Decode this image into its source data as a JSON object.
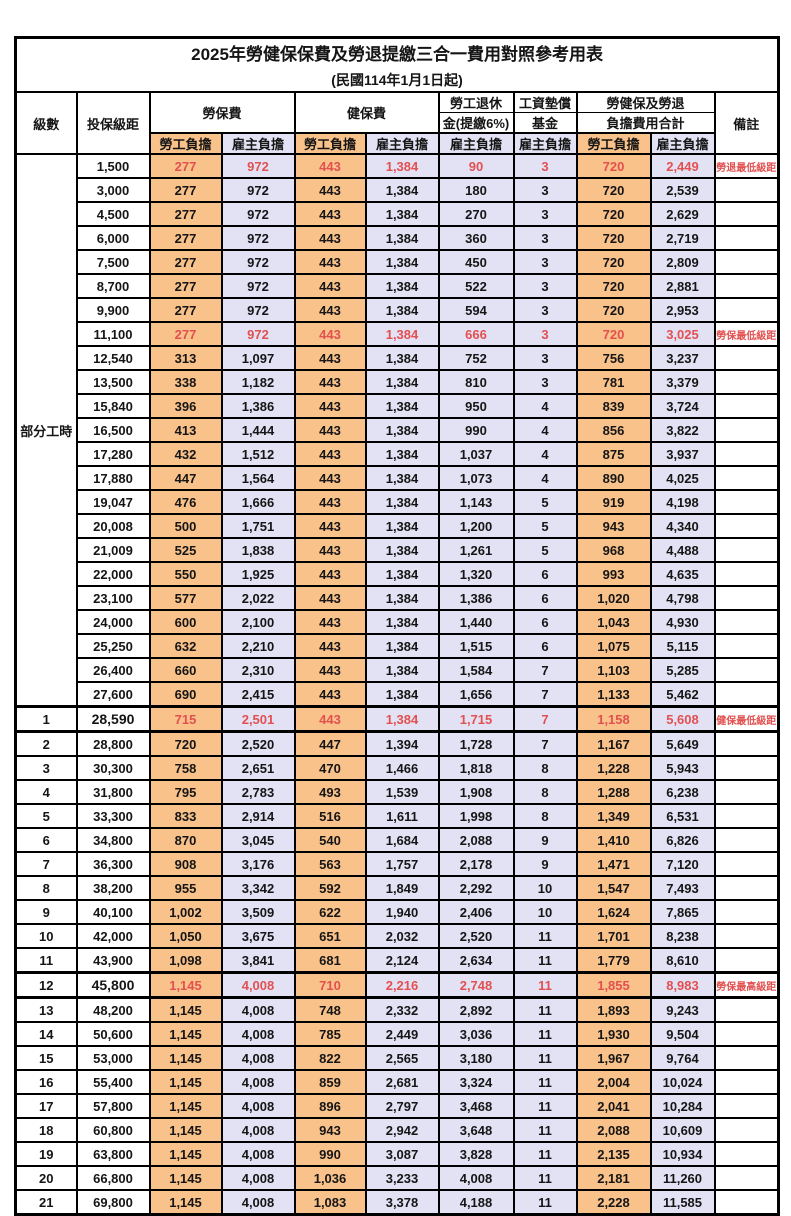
{
  "title": "2025年勞健保保費及勞退提繳三合一費用對照參考用表",
  "subtitle": "(民國114年1月1日起)",
  "header": {
    "level": "級數",
    "salary": "投保級距",
    "labor_insurance": "勞保費",
    "health_insurance": "健保費",
    "pension_line1": "勞工退休",
    "pension_line2": "金(提繳6%)",
    "fund_line1": "工資墊償",
    "fund_line2": "基金",
    "total_line1": "勞健保及勞退",
    "total_line2": "負擔費用合計",
    "employee_label": "勞工負擔",
    "employer_label": "雇主負擔",
    "remark": "備註"
  },
  "part_time_label": "部分工時",
  "colors": {
    "employee_bg": "#F9C28B",
    "employer_bg": "#E3E2F5",
    "highlight_red": "#E25050",
    "border": "#000000"
  },
  "rows": [
    {
      "level": "部分工時",
      "part_time": true,
      "salary": "1,500",
      "fees": [
        "277",
        "972",
        "443",
        "1,384",
        "90",
        "3",
        "720",
        "2,449"
      ],
      "remark": "勞退最低級距",
      "highlight": true,
      "thick": false
    },
    {
      "level": "",
      "salary": "3,000",
      "fees": [
        "277",
        "972",
        "443",
        "1,384",
        "180",
        "3",
        "720",
        "2,539"
      ],
      "remark": "",
      "highlight": false,
      "thick": false
    },
    {
      "level": "",
      "salary": "4,500",
      "fees": [
        "277",
        "972",
        "443",
        "1,384",
        "270",
        "3",
        "720",
        "2,629"
      ],
      "remark": "",
      "highlight": false,
      "thick": false
    },
    {
      "level": "",
      "salary": "6,000",
      "fees": [
        "277",
        "972",
        "443",
        "1,384",
        "360",
        "3",
        "720",
        "2,719"
      ],
      "remark": "",
      "highlight": false,
      "thick": false
    },
    {
      "level": "",
      "salary": "7,500",
      "fees": [
        "277",
        "972",
        "443",
        "1,384",
        "450",
        "3",
        "720",
        "2,809"
      ],
      "remark": "",
      "highlight": false,
      "thick": false
    },
    {
      "level": "",
      "salary": "8,700",
      "fees": [
        "277",
        "972",
        "443",
        "1,384",
        "522",
        "3",
        "720",
        "2,881"
      ],
      "remark": "",
      "highlight": false,
      "thick": false
    },
    {
      "level": "",
      "salary": "9,900",
      "fees": [
        "277",
        "972",
        "443",
        "1,384",
        "594",
        "3",
        "720",
        "2,953"
      ],
      "remark": "",
      "highlight": false,
      "thick": false
    },
    {
      "level": "",
      "salary": "11,100",
      "fees": [
        "277",
        "972",
        "443",
        "1,384",
        "666",
        "3",
        "720",
        "3,025"
      ],
      "remark": "勞保最低級距",
      "highlight": true,
      "thick": false
    },
    {
      "level": "",
      "salary": "12,540",
      "fees": [
        "313",
        "1,097",
        "443",
        "1,384",
        "752",
        "3",
        "756",
        "3,237"
      ],
      "remark": "",
      "highlight": false,
      "thick": false
    },
    {
      "level": "",
      "salary": "13,500",
      "fees": [
        "338",
        "1,182",
        "443",
        "1,384",
        "810",
        "3",
        "781",
        "3,379"
      ],
      "remark": "",
      "highlight": false,
      "thick": false
    },
    {
      "level": "",
      "salary": "15,840",
      "fees": [
        "396",
        "1,386",
        "443",
        "1,384",
        "950",
        "4",
        "839",
        "3,724"
      ],
      "remark": "",
      "highlight": false,
      "thick": false
    },
    {
      "level": "",
      "salary": "16,500",
      "fees": [
        "413",
        "1,444",
        "443",
        "1,384",
        "990",
        "4",
        "856",
        "3,822"
      ],
      "remark": "",
      "highlight": false,
      "thick": false
    },
    {
      "level": "",
      "salary": "17,280",
      "fees": [
        "432",
        "1,512",
        "443",
        "1,384",
        "1,037",
        "4",
        "875",
        "3,937"
      ],
      "remark": "",
      "highlight": false,
      "thick": false
    },
    {
      "level": "",
      "salary": "17,880",
      "fees": [
        "447",
        "1,564",
        "443",
        "1,384",
        "1,073",
        "4",
        "890",
        "4,025"
      ],
      "remark": "",
      "highlight": false,
      "thick": false
    },
    {
      "level": "",
      "salary": "19,047",
      "fees": [
        "476",
        "1,666",
        "443",
        "1,384",
        "1,143",
        "5",
        "919",
        "4,198"
      ],
      "remark": "",
      "highlight": false,
      "thick": false
    },
    {
      "level": "",
      "salary": "20,008",
      "fees": [
        "500",
        "1,751",
        "443",
        "1,384",
        "1,200",
        "5",
        "943",
        "4,340"
      ],
      "remark": "",
      "highlight": false,
      "thick": false
    },
    {
      "level": "",
      "salary": "21,009",
      "fees": [
        "525",
        "1,838",
        "443",
        "1,384",
        "1,261",
        "5",
        "968",
        "4,488"
      ],
      "remark": "",
      "highlight": false,
      "thick": false
    },
    {
      "level": "",
      "salary": "22,000",
      "fees": [
        "550",
        "1,925",
        "443",
        "1,384",
        "1,320",
        "6",
        "993",
        "4,635"
      ],
      "remark": "",
      "highlight": false,
      "thick": false
    },
    {
      "level": "",
      "salary": "23,100",
      "fees": [
        "577",
        "2,022",
        "443",
        "1,384",
        "1,386",
        "6",
        "1,020",
        "4,798"
      ],
      "remark": "",
      "highlight": false,
      "thick": false
    },
    {
      "level": "",
      "salary": "24,000",
      "fees": [
        "600",
        "2,100",
        "443",
        "1,384",
        "1,440",
        "6",
        "1,043",
        "4,930"
      ],
      "remark": "",
      "highlight": false,
      "thick": false
    },
    {
      "level": "",
      "salary": "25,250",
      "fees": [
        "632",
        "2,210",
        "443",
        "1,384",
        "1,515",
        "6",
        "1,075",
        "5,115"
      ],
      "remark": "",
      "highlight": false,
      "thick": false
    },
    {
      "level": "",
      "salary": "26,400",
      "fees": [
        "660",
        "2,310",
        "443",
        "1,384",
        "1,584",
        "7",
        "1,103",
        "5,285"
      ],
      "remark": "",
      "highlight": false,
      "thick": false
    },
    {
      "level": "",
      "salary": "27,600",
      "fees": [
        "690",
        "2,415",
        "443",
        "1,384",
        "1,656",
        "7",
        "1,133",
        "5,462"
      ],
      "remark": "",
      "highlight": false,
      "thick": false
    },
    {
      "level": "1",
      "salary": "28,590",
      "fees": [
        "715",
        "2,501",
        "443",
        "1,384",
        "1,715",
        "7",
        "1,158",
        "5,608"
      ],
      "remark": "健保最低級距",
      "highlight": true,
      "thick": true
    },
    {
      "level": "2",
      "salary": "28,800",
      "fees": [
        "720",
        "2,520",
        "447",
        "1,394",
        "1,728",
        "7",
        "1,167",
        "5,649"
      ],
      "remark": "",
      "highlight": false,
      "thick": false
    },
    {
      "level": "3",
      "salary": "30,300",
      "fees": [
        "758",
        "2,651",
        "470",
        "1,466",
        "1,818",
        "8",
        "1,228",
        "5,943"
      ],
      "remark": "",
      "highlight": false,
      "thick": false
    },
    {
      "level": "4",
      "salary": "31,800",
      "fees": [
        "795",
        "2,783",
        "493",
        "1,539",
        "1,908",
        "8",
        "1,288",
        "6,238"
      ],
      "remark": "",
      "highlight": false,
      "thick": false
    },
    {
      "level": "5",
      "salary": "33,300",
      "fees": [
        "833",
        "2,914",
        "516",
        "1,611",
        "1,998",
        "8",
        "1,349",
        "6,531"
      ],
      "remark": "",
      "highlight": false,
      "thick": false
    },
    {
      "level": "6",
      "salary": "34,800",
      "fees": [
        "870",
        "3,045",
        "540",
        "1,684",
        "2,088",
        "9",
        "1,410",
        "6,826"
      ],
      "remark": "",
      "highlight": false,
      "thick": false
    },
    {
      "level": "7",
      "salary": "36,300",
      "fees": [
        "908",
        "3,176",
        "563",
        "1,757",
        "2,178",
        "9",
        "1,471",
        "7,120"
      ],
      "remark": "",
      "highlight": false,
      "thick": false
    },
    {
      "level": "8",
      "salary": "38,200",
      "fees": [
        "955",
        "3,342",
        "592",
        "1,849",
        "2,292",
        "10",
        "1,547",
        "7,493"
      ],
      "remark": "",
      "highlight": false,
      "thick": false
    },
    {
      "level": "9",
      "salary": "40,100",
      "fees": [
        "1,002",
        "3,509",
        "622",
        "1,940",
        "2,406",
        "10",
        "1,624",
        "7,865"
      ],
      "remark": "",
      "highlight": false,
      "thick": false
    },
    {
      "level": "10",
      "salary": "42,000",
      "fees": [
        "1,050",
        "3,675",
        "651",
        "2,032",
        "2,520",
        "11",
        "1,701",
        "8,238"
      ],
      "remark": "",
      "highlight": false,
      "thick": false
    },
    {
      "level": "11",
      "salary": "43,900",
      "fees": [
        "1,098",
        "3,841",
        "681",
        "2,124",
        "2,634",
        "11",
        "1,779",
        "8,610"
      ],
      "remark": "",
      "highlight": false,
      "thick": false
    },
    {
      "level": "12",
      "salary": "45,800",
      "fees": [
        "1,145",
        "4,008",
        "710",
        "2,216",
        "2,748",
        "11",
        "1,855",
        "8,983"
      ],
      "remark": "勞保最高級距",
      "highlight": true,
      "thick": true
    },
    {
      "level": "13",
      "salary": "48,200",
      "fees": [
        "1,145",
        "4,008",
        "748",
        "2,332",
        "2,892",
        "11",
        "1,893",
        "9,243"
      ],
      "remark": "",
      "highlight": false,
      "thick": false
    },
    {
      "level": "14",
      "salary": "50,600",
      "fees": [
        "1,145",
        "4,008",
        "785",
        "2,449",
        "3,036",
        "11",
        "1,930",
        "9,504"
      ],
      "remark": "",
      "highlight": false,
      "thick": false
    },
    {
      "level": "15",
      "salary": "53,000",
      "fees": [
        "1,145",
        "4,008",
        "822",
        "2,565",
        "3,180",
        "11",
        "1,967",
        "9,764"
      ],
      "remark": "",
      "highlight": false,
      "thick": false
    },
    {
      "level": "16",
      "salary": "55,400",
      "fees": [
        "1,145",
        "4,008",
        "859",
        "2,681",
        "3,324",
        "11",
        "2,004",
        "10,024"
      ],
      "remark": "",
      "highlight": false,
      "thick": false
    },
    {
      "level": "17",
      "salary": "57,800",
      "fees": [
        "1,145",
        "4,008",
        "896",
        "2,797",
        "3,468",
        "11",
        "2,041",
        "10,284"
      ],
      "remark": "",
      "highlight": false,
      "thick": false
    },
    {
      "level": "18",
      "salary": "60,800",
      "fees": [
        "1,145",
        "4,008",
        "943",
        "2,942",
        "3,648",
        "11",
        "2,088",
        "10,609"
      ],
      "remark": "",
      "highlight": false,
      "thick": false
    },
    {
      "level": "19",
      "salary": "63,800",
      "fees": [
        "1,145",
        "4,008",
        "990",
        "3,087",
        "3,828",
        "11",
        "2,135",
        "10,934"
      ],
      "remark": "",
      "highlight": false,
      "thick": false
    },
    {
      "level": "20",
      "salary": "66,800",
      "fees": [
        "1,145",
        "4,008",
        "1,036",
        "3,233",
        "4,008",
        "11",
        "2,181",
        "11,260"
      ],
      "remark": "",
      "highlight": false,
      "thick": false
    },
    {
      "level": "21",
      "salary": "69,800",
      "fees": [
        "1,145",
        "4,008",
        "1,083",
        "3,378",
        "4,188",
        "11",
        "2,228",
        "11,585"
      ],
      "remark": "",
      "highlight": false,
      "thick": false
    }
  ]
}
